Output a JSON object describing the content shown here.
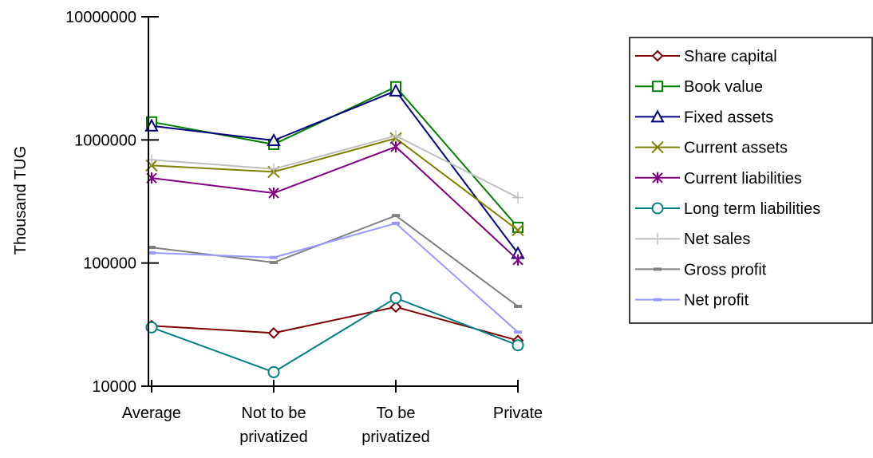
{
  "chart_data": {
    "type": "line",
    "title": "",
    "xlabel": "",
    "ylabel": "Thousand TUG",
    "y_scale": "log",
    "ylim": [
      10000,
      10000000
    ],
    "y_ticks": [
      10000,
      100000,
      1000000,
      10000000
    ],
    "y_tick_labels": [
      "10000",
      "100000",
      "1000000",
      "10000000"
    ],
    "grid": false,
    "legend_position": "right",
    "categories": [
      [
        "Average"
      ],
      [
        "Not to be",
        "privatized"
      ],
      [
        "To be",
        "privatized"
      ],
      [
        "Private"
      ]
    ],
    "series": [
      {
        "name": "Share capital",
        "marker": "diamond-open",
        "color": "#800000",
        "values": [
          31000,
          27000,
          44000,
          23500
        ]
      },
      {
        "name": "Book value",
        "marker": "square-open",
        "color": "#008000",
        "values": [
          1400000,
          920000,
          2700000,
          195000
        ]
      },
      {
        "name": "Fixed assets",
        "marker": "triangle-open",
        "color": "#000080",
        "values": [
          1300000,
          990000,
          2500000,
          120000
        ]
      },
      {
        "name": "Current assets",
        "marker": "x",
        "color": "#808000",
        "values": [
          620000,
          550000,
          1030000,
          185000
        ]
      },
      {
        "name": "Current liabilities",
        "marker": "star",
        "color": "#800080",
        "values": [
          490000,
          370000,
          880000,
          106000
        ]
      },
      {
        "name": "Long term liabilities",
        "marker": "circle-open",
        "color": "#008080",
        "values": [
          30000,
          13000,
          52000,
          21500
        ]
      },
      {
        "name": "Net sales",
        "marker": "plus",
        "color": "#c0c0c0",
        "values": [
          690000,
          580000,
          1080000,
          340000
        ]
      },
      {
        "name": "Gross profit",
        "marker": "dash",
        "color": "#808080",
        "values": [
          134000,
          101000,
          243000,
          44500
        ]
      },
      {
        "name": "Net profit",
        "marker": "dash",
        "color": "#9999ff",
        "values": [
          121000,
          111000,
          210000,
          27500
        ]
      }
    ]
  }
}
